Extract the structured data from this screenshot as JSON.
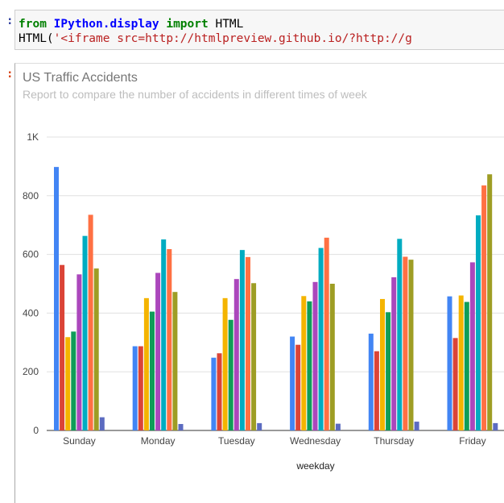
{
  "notebook": {
    "code_line1": {
      "kw1": "from",
      "module": "IPython.display",
      "kw2": "import",
      "name": "HTML"
    },
    "code_line2": {
      "prefix": "HTML(",
      "string": "'<iframe src=http://htmlpreview.github.io/?http://g"
    }
  },
  "chart_data": {
    "type": "bar",
    "title": "US Traffic Accidents",
    "subtitle": "Report to compare the number of accidents in different times of week",
    "xlabel": "weekday",
    "ylabel": "",
    "ylim": [
      0,
      1000
    ],
    "yticks": [
      0,
      200,
      400,
      600,
      800,
      1000
    ],
    "ytick_labels": [
      "0",
      "200",
      "400",
      "600",
      "800",
      "1K"
    ],
    "grid": true,
    "legend": "none",
    "categories": [
      "Sunday",
      "Monday",
      "Tuesday",
      "Wednesday",
      "Thursday",
      "Friday"
    ],
    "colors": [
      "#4285f4",
      "#db4437",
      "#f4b400",
      "#0f9d58",
      "#ab47bc",
      "#00acc1",
      "#ff7043",
      "#9e9d24",
      "#5c6bc0"
    ],
    "series": [
      {
        "values": [
          898,
          287,
          248,
          320,
          330,
          457
        ]
      },
      {
        "values": [
          564,
          287,
          263,
          292,
          270,
          315
        ]
      },
      {
        "values": [
          318,
          451,
          451,
          458,
          448,
          460
        ]
      },
      {
        "values": [
          337,
          405,
          377,
          440,
          403,
          438
        ]
      },
      {
        "values": [
          532,
          537,
          516,
          506,
          522,
          573
        ]
      },
      {
        "values": [
          663,
          651,
          615,
          622,
          653,
          733
        ]
      },
      {
        "values": [
          735,
          618,
          591,
          657,
          592,
          835
        ]
      },
      {
        "values": [
          552,
          472,
          502,
          500,
          582,
          873
        ]
      },
      {
        "values": [
          45,
          22,
          25,
          23,
          30,
          25
        ]
      }
    ]
  }
}
